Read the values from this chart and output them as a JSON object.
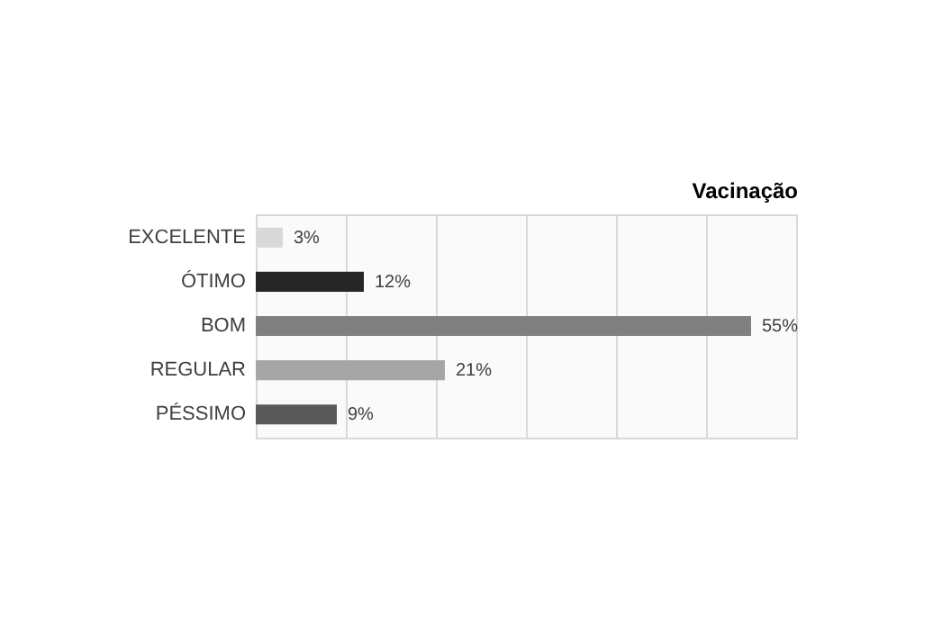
{
  "chart_data": {
    "type": "bar",
    "orientation": "horizontal",
    "title": "Vacinação",
    "categories": [
      "EXCELENTE",
      "ÓTIMO",
      "BOM",
      "REGULAR",
      "PÉSSIMO"
    ],
    "values": [
      3,
      12,
      55,
      21,
      9
    ],
    "value_labels": [
      "3%",
      "12%",
      "55%",
      "21%",
      "9%"
    ],
    "colors": [
      "#d9d9d9",
      "#262626",
      "#808080",
      "#a6a6a6",
      "#595959"
    ],
    "xlim": [
      0,
      60
    ],
    "xticks": [
      {
        "value": 0,
        "label": null
      },
      {
        "value": 10,
        "label": null
      },
      {
        "value": 20,
        "label": null
      },
      {
        "value": 30,
        "label": null
      },
      {
        "value": 40,
        "label": null
      },
      {
        "value": 50,
        "label": null
      },
      {
        "value": 60,
        "label": null
      }
    ],
    "tick_labels": "y",
    "grid": "x"
  }
}
